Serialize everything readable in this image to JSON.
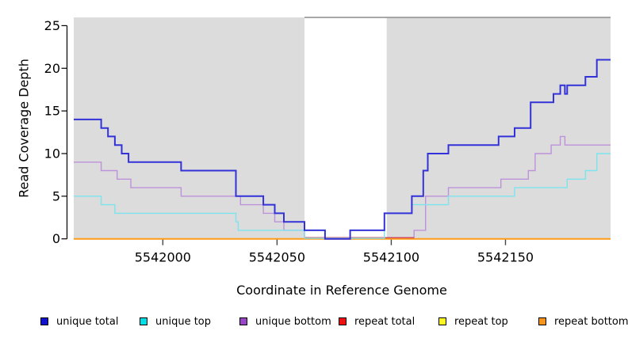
{
  "chart_data": {
    "type": "line",
    "subtype": "step",
    "title": "",
    "xlabel": "Coordinate in Reference Genome",
    "ylabel": "Read Coverage Depth",
    "xlim": [
      5541961,
      5542196
    ],
    "ylim": [
      0,
      26
    ],
    "grid": false,
    "legend_position": "bottom-horizontal",
    "x_ticks": [
      {
        "value": 5542000,
        "label": "5542000"
      },
      {
        "value": 5542050,
        "label": "5542050"
      },
      {
        "value": 5542100,
        "label": "5542100"
      },
      {
        "value": 5542150,
        "label": "5542150"
      }
    ],
    "y_ticks": [
      {
        "value": 0,
        "label": "0"
      },
      {
        "value": 5,
        "label": "5"
      },
      {
        "value": 10,
        "label": "10"
      },
      {
        "value": 15,
        "label": "15"
      },
      {
        "value": 20,
        "label": "20"
      },
      {
        "value": 25,
        "label": "25"
      }
    ],
    "background": {
      "page_fill": "#ffffff",
      "plot_fill": "#dcdcdc",
      "repeat_region_band": {
        "x_start": 5542062,
        "x_end": 5542098,
        "fill": "#ffffff",
        "border_top_color": "#8c8c8c"
      }
    },
    "series": [
      {
        "name": "unique total",
        "color": "#3232d8",
        "legend_fill": "#1212ce",
        "line_width": 2,
        "points": [
          [
            5541961,
            14
          ],
          [
            5541973,
            13
          ],
          [
            5541976,
            12
          ],
          [
            5541979,
            11
          ],
          [
            5541982,
            10
          ],
          [
            5541985,
            9
          ],
          [
            5542008,
            8
          ],
          [
            5542032,
            5
          ],
          [
            5542044,
            4
          ],
          [
            5542049,
            3
          ],
          [
            5542053,
            2
          ],
          [
            5542062,
            1
          ],
          [
            5542071,
            0
          ],
          [
            5542082,
            1
          ],
          [
            5542097,
            3
          ],
          [
            5542109,
            5
          ],
          [
            5542114,
            8
          ],
          [
            5542116,
            10
          ],
          [
            5542125,
            11
          ],
          [
            5542147,
            12
          ],
          [
            5542154,
            13
          ],
          [
            5542161,
            16
          ],
          [
            5542171,
            17
          ],
          [
            5542174,
            18
          ],
          [
            5542176,
            17
          ],
          [
            5542177,
            18
          ],
          [
            5542185,
            19
          ],
          [
            5542190,
            21
          ],
          [
            5542196,
            21
          ]
        ]
      },
      {
        "name": "unique top",
        "color": "#7de4ee",
        "legend_fill": "#00dee8",
        "line_width": 1.4,
        "points": [
          [
            5541961,
            5
          ],
          [
            5541973,
            4
          ],
          [
            5541979,
            3
          ],
          [
            5542032,
            2
          ],
          [
            5542033,
            1
          ],
          [
            5542062,
            0
          ],
          [
            5542097,
            3
          ],
          [
            5542109,
            4
          ],
          [
            5542125,
            5
          ],
          [
            5542154,
            6
          ],
          [
            5542177,
            7
          ],
          [
            5542185,
            8
          ],
          [
            5542190,
            10
          ],
          [
            5542196,
            10
          ]
        ]
      },
      {
        "name": "unique bottom",
        "color": "#bd92da",
        "legend_fill": "#9a45c8",
        "line_width": 1.4,
        "points": [
          [
            5541961,
            9
          ],
          [
            5541973,
            8
          ],
          [
            5541980,
            7
          ],
          [
            5541986,
            6
          ],
          [
            5542008,
            5
          ],
          [
            5542034,
            4
          ],
          [
            5542044,
            3
          ],
          [
            5542049,
            2
          ],
          [
            5542053,
            1
          ],
          [
            5542062,
            0
          ],
          [
            5542110,
            1
          ],
          [
            5542115,
            5
          ],
          [
            5542125,
            6
          ],
          [
            5542148,
            7
          ],
          [
            5542160,
            8
          ],
          [
            5542163,
            10
          ],
          [
            5542170,
            11
          ],
          [
            5542174,
            12
          ],
          [
            5542176,
            11
          ],
          [
            5542196,
            11
          ]
        ]
      },
      {
        "name": "repeat total",
        "color": "#d24a5c",
        "legend_fill": "#ee1111",
        "line_width": 1.5,
        "points": [
          [
            5542062,
            0
          ],
          [
            5542110,
            0
          ]
        ]
      },
      {
        "name": "repeat top",
        "color": "#ffff40",
        "legend_fill": "#fbf523",
        "line_width": 1.5,
        "points": [
          [
            5541961,
            0
          ],
          [
            5542196,
            0
          ]
        ]
      },
      {
        "name": "repeat bottom",
        "color": "#ff9c17",
        "legend_fill": "#f7941d",
        "line_width": 2,
        "points": [
          [
            5541961,
            0
          ],
          [
            5542196,
            0
          ]
        ]
      }
    ]
  }
}
